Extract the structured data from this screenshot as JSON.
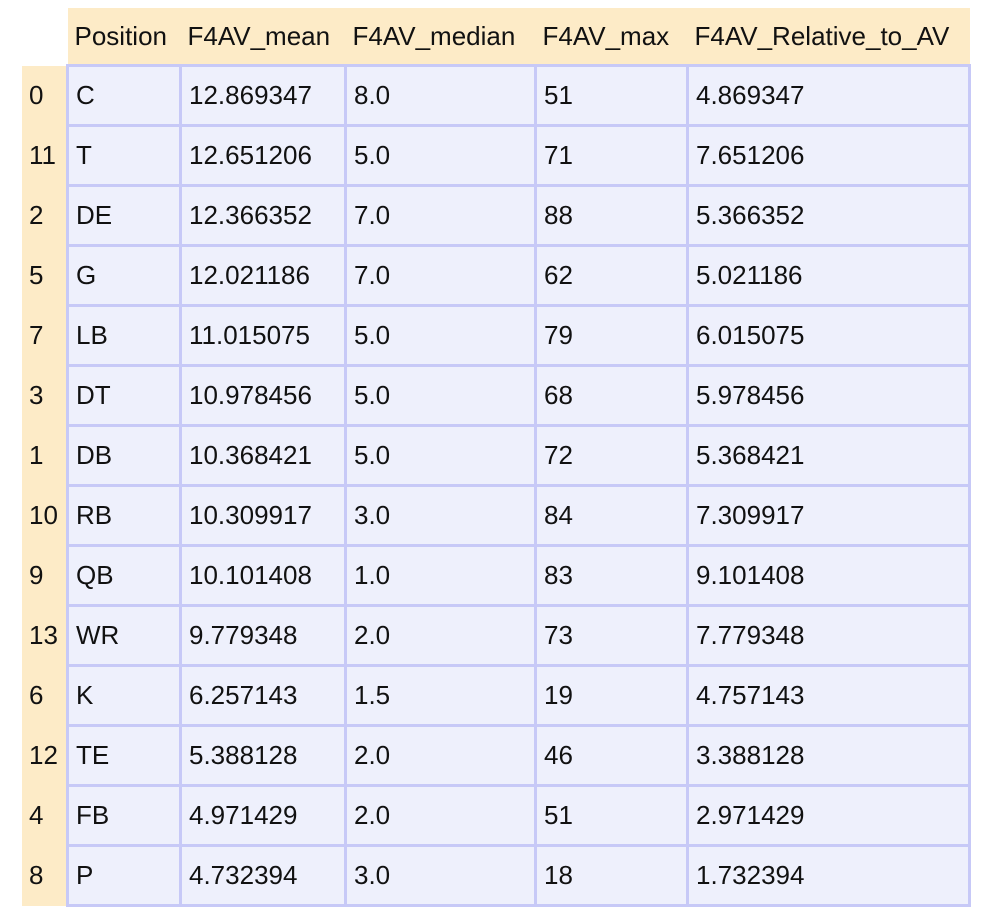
{
  "table": {
    "columns": [
      "Position",
      "F4AV_mean",
      "F4AV_median",
      "F4AV_max",
      "F4AV_Relative_to_AV"
    ],
    "rows": [
      {
        "index": "0",
        "Position": "C",
        "F4AV_mean": "12.869347",
        "F4AV_median": "8.0",
        "F4AV_max": "51",
        "F4AV_Relative_to_AV": "4.869347"
      },
      {
        "index": "11",
        "Position": "T",
        "F4AV_mean": "12.651206",
        "F4AV_median": "5.0",
        "F4AV_max": "71",
        "F4AV_Relative_to_AV": "7.651206"
      },
      {
        "index": "2",
        "Position": "DE",
        "F4AV_mean": "12.366352",
        "F4AV_median": "7.0",
        "F4AV_max": "88",
        "F4AV_Relative_to_AV": "5.366352"
      },
      {
        "index": "5",
        "Position": "G",
        "F4AV_mean": "12.021186",
        "F4AV_median": "7.0",
        "F4AV_max": "62",
        "F4AV_Relative_to_AV": "5.021186"
      },
      {
        "index": "7",
        "Position": "LB",
        "F4AV_mean": "11.015075",
        "F4AV_median": "5.0",
        "F4AV_max": "79",
        "F4AV_Relative_to_AV": "6.015075"
      },
      {
        "index": "3",
        "Position": "DT",
        "F4AV_mean": "10.978456",
        "F4AV_median": "5.0",
        "F4AV_max": "68",
        "F4AV_Relative_to_AV": "5.978456"
      },
      {
        "index": "1",
        "Position": "DB",
        "F4AV_mean": "10.368421",
        "F4AV_median": "5.0",
        "F4AV_max": "72",
        "F4AV_Relative_to_AV": "5.368421"
      },
      {
        "index": "10",
        "Position": "RB",
        "F4AV_mean": "10.309917",
        "F4AV_median": "3.0",
        "F4AV_max": "84",
        "F4AV_Relative_to_AV": "7.309917"
      },
      {
        "index": "9",
        "Position": "QB",
        "F4AV_mean": "10.101408",
        "F4AV_median": "1.0",
        "F4AV_max": "83",
        "F4AV_Relative_to_AV": "9.101408"
      },
      {
        "index": "13",
        "Position": "WR",
        "F4AV_mean": "9.779348",
        "F4AV_median": "2.0",
        "F4AV_max": "73",
        "F4AV_Relative_to_AV": "7.779348"
      },
      {
        "index": "6",
        "Position": "K",
        "F4AV_mean": "6.257143",
        "F4AV_median": "1.5",
        "F4AV_max": "19",
        "F4AV_Relative_to_AV": "4.757143"
      },
      {
        "index": "12",
        "Position": "TE",
        "F4AV_mean": "5.388128",
        "F4AV_median": "2.0",
        "F4AV_max": "46",
        "F4AV_Relative_to_AV": "3.388128"
      },
      {
        "index": "4",
        "Position": "FB",
        "F4AV_mean": "4.971429",
        "F4AV_median": "2.0",
        "F4AV_max": "51",
        "F4AV_Relative_to_AV": "2.971429"
      },
      {
        "index": "8",
        "Position": "P",
        "F4AV_mean": "4.732394",
        "F4AV_median": "3.0",
        "F4AV_max": "18",
        "F4AV_Relative_to_AV": "1.732394"
      }
    ]
  }
}
